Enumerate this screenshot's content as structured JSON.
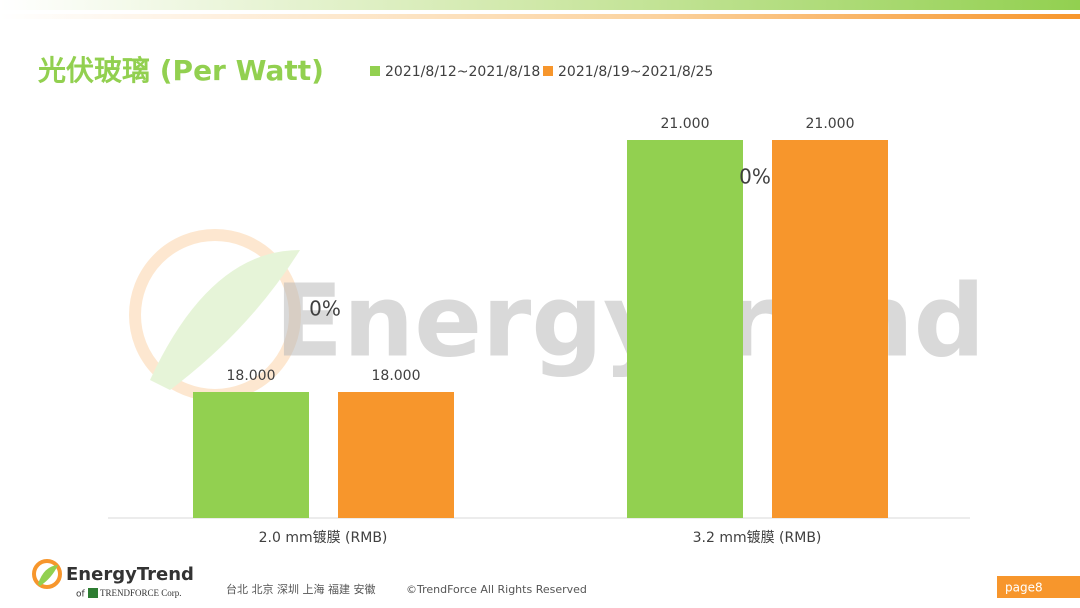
{
  "chart_data": {
    "type": "bar",
    "title": "光伏玻璃 (Per Watt)",
    "categories": [
      "2.0 mm镀膜 (RMB)",
      "3.2 mm镀膜 (RMB)"
    ],
    "series": [
      {
        "name": "2021/8/12~2021/8/18",
        "color": "#92d050",
        "values": [
          18,
          21
        ],
        "value_labels": [
          "18.000",
          "21.000"
        ]
      },
      {
        "name": "2021/8/19~2021/8/25",
        "color": "#f7962c",
        "values": [
          18,
          21
        ],
        "value_labels": [
          "18.000",
          "21.000"
        ]
      }
    ],
    "annotations": [
      "0%",
      "0%"
    ],
    "ylim": [
      16.5,
      21.5
    ]
  },
  "watermark": "EnergyTrend",
  "footer": {
    "logo": "EnergyTrend",
    "logo_of": "of",
    "logo_corp": "TRENDFORCE Corp.",
    "offices": "台北 北京 深圳 上海 福建 安徽",
    "copyright": "©TrendForce All Rights Reserved",
    "page": "page8"
  }
}
